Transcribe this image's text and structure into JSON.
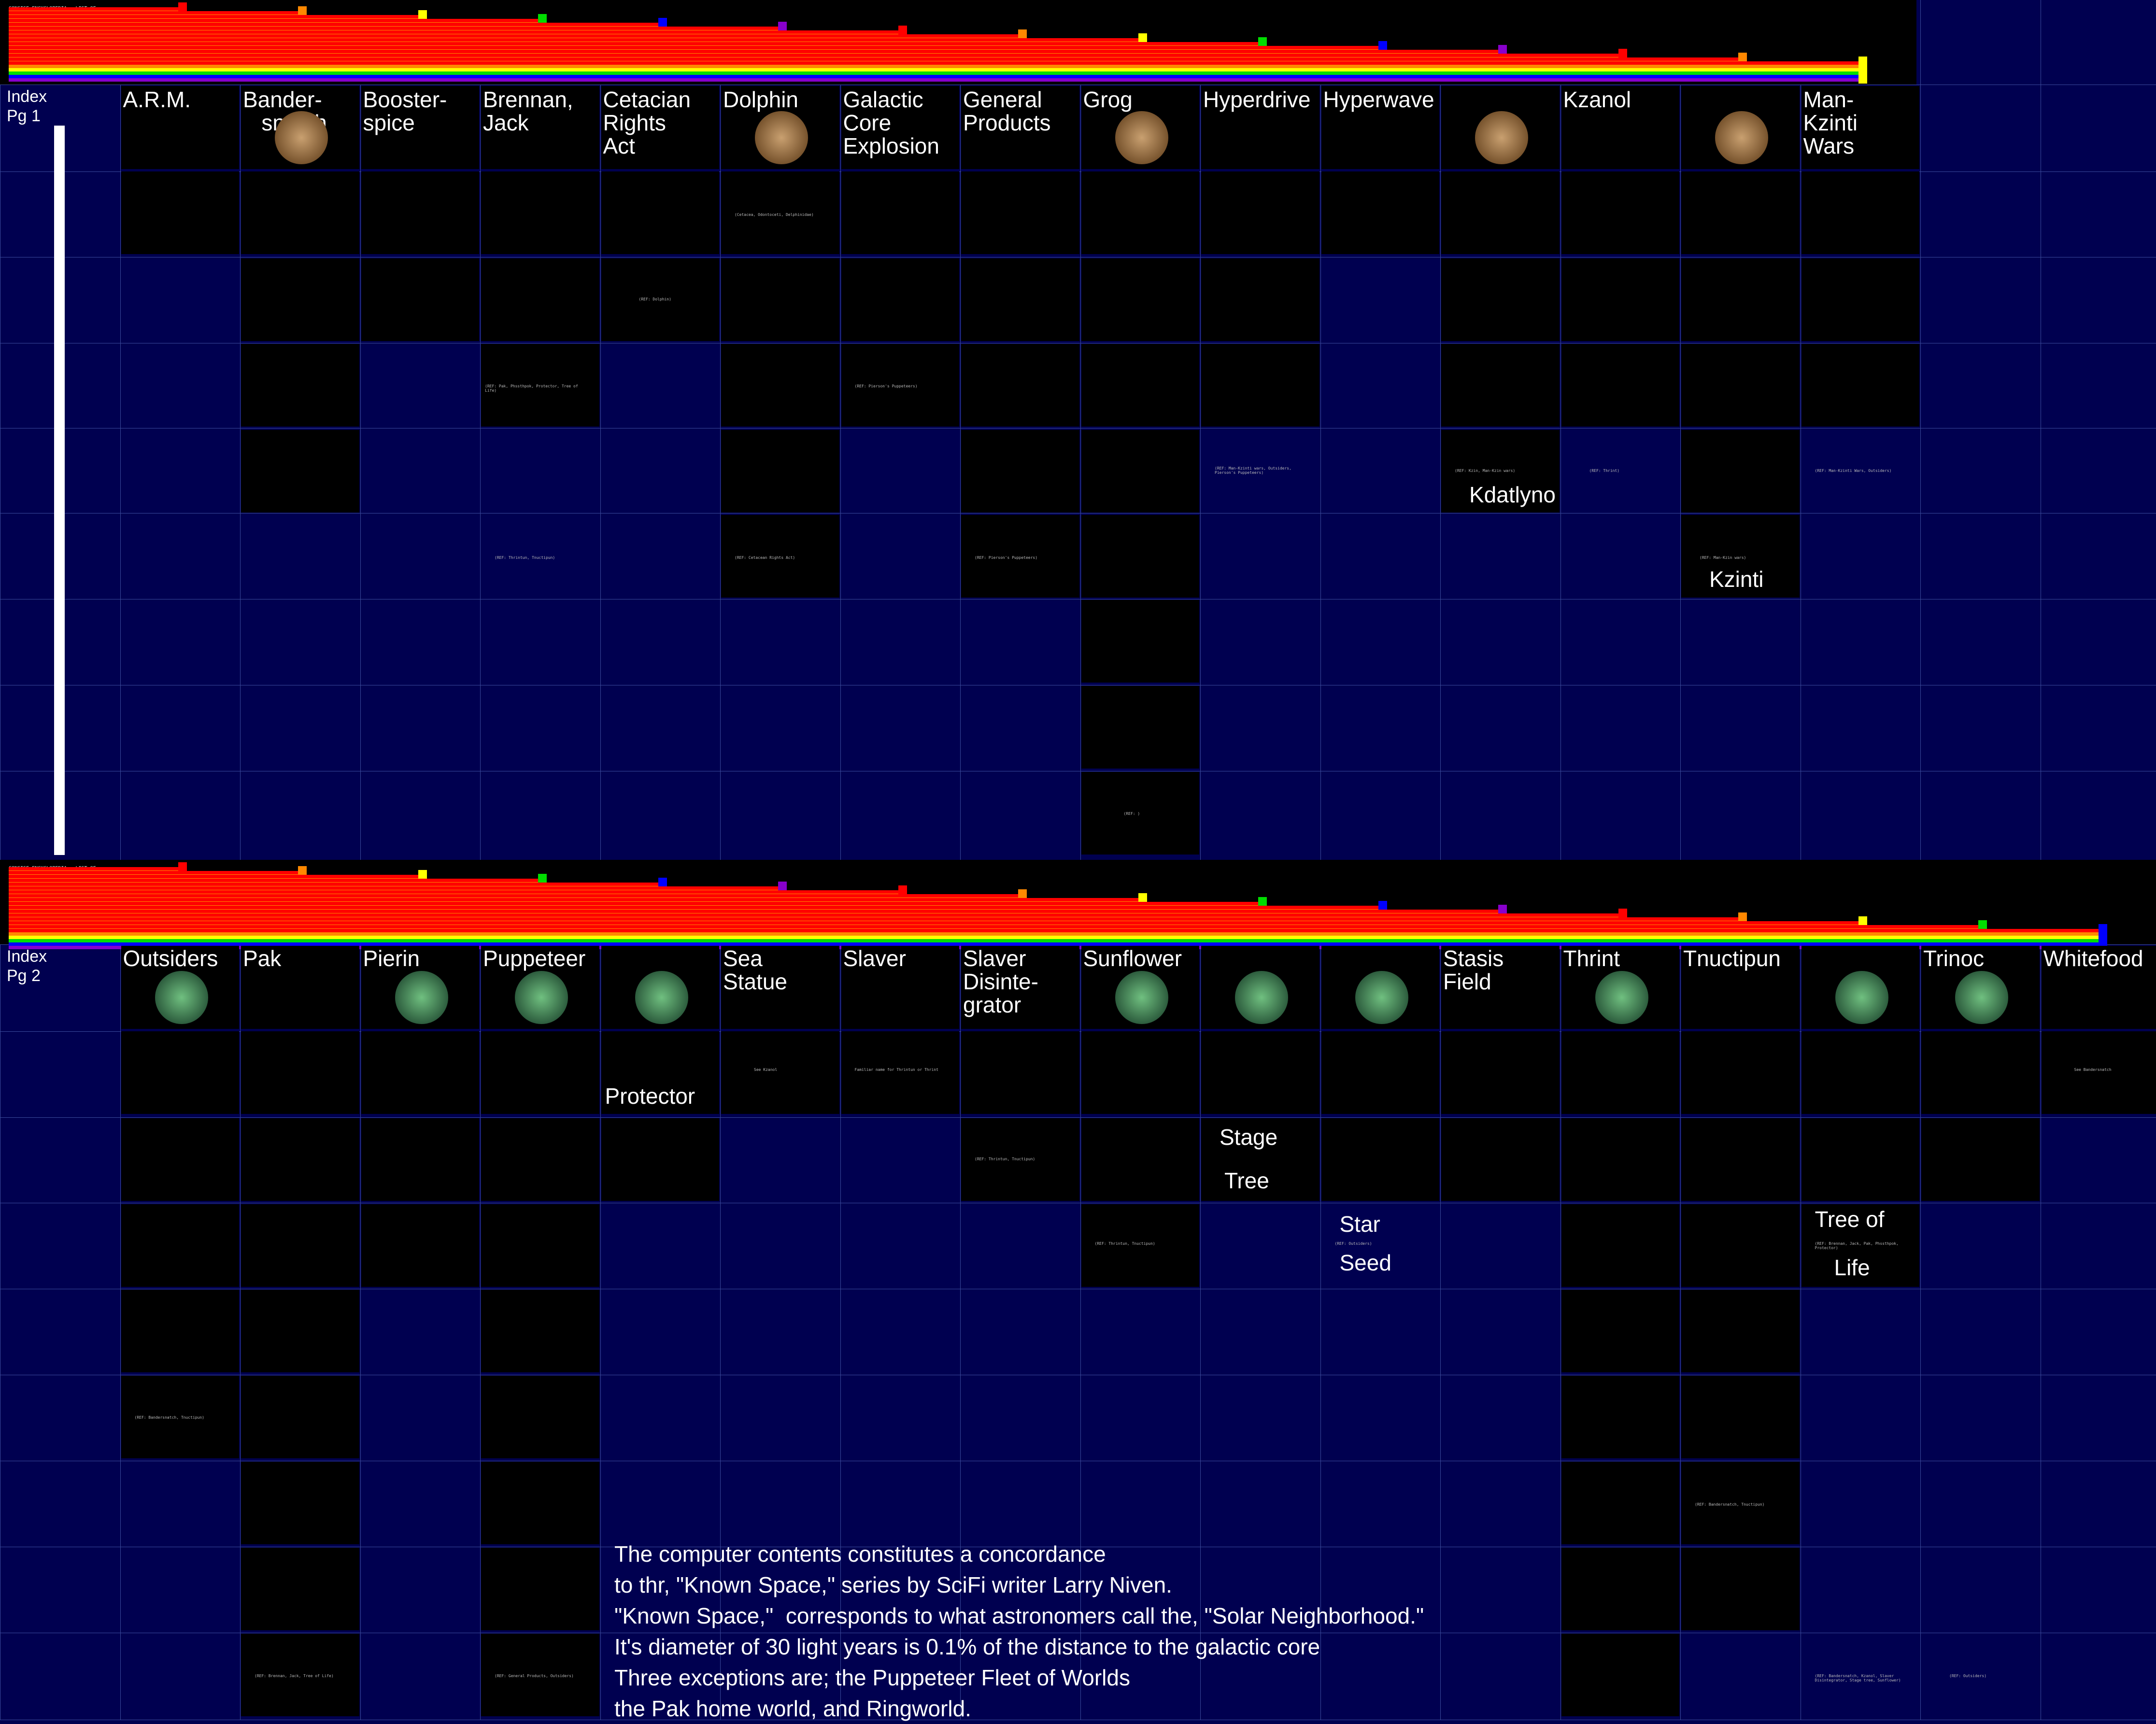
{
  "band1_title": "CONCISE ENCYCLOPEDIA - LIST OF\nSUBJECTS\nARM (Amalgamation of Regional",
  "band2_title": "CONCISE ENCYCLOPEDIA - LIST OF\nSUBJECTS",
  "index1": "Index\nPg 1",
  "index2": "Index\nPg 2",
  "page1": [
    {
      "label": "A.R.M.",
      "icon": ""
    },
    {
      "label": "Bander-\n   snatch",
      "icon": "bandersnatch-icon"
    },
    {
      "label": "Booster-\nspice",
      "icon": ""
    },
    {
      "label": "Brennan,\nJack",
      "icon": ""
    },
    {
      "label": "Cetacian\nRights\nAct",
      "icon": ""
    },
    {
      "label": "Dolphin",
      "icon": "dolphin-icon"
    },
    {
      "label": "Galactic\nCore\nExplosion",
      "icon": ""
    },
    {
      "label": "General\nProducts",
      "icon": ""
    },
    {
      "label": "Grog",
      "icon": "grog-icon"
    },
    {
      "label": "Hyperdrive",
      "icon": ""
    },
    {
      "label": "Hyperwave",
      "icon": ""
    },
    {
      "label": "",
      "icon": "kdatlyno-icon"
    },
    {
      "label": "Kzanol",
      "icon": ""
    },
    {
      "label": "",
      "icon": "kzinti-icon"
    },
    {
      "label": "Man-\nKzinti\nWars",
      "icon": ""
    }
  ],
  "page2": [
    {
      "label": "Outsiders",
      "icon": "outsider-icon"
    },
    {
      "label": "Pak",
      "icon": ""
    },
    {
      "label": "Pierin",
      "icon": "pierin-icon"
    },
    {
      "label": "Puppeteer",
      "icon": "puppeteer-icon"
    },
    {
      "label": "",
      "icon": "protector-icon"
    },
    {
      "label": "Sea\nStatue",
      "icon": ""
    },
    {
      "label": "Slaver",
      "icon": ""
    },
    {
      "label": "Slaver\nDisinte-\ngrator",
      "icon": ""
    },
    {
      "label": "Sunflower",
      "icon": "sunflower-icon"
    },
    {
      "label": "",
      "icon": "stage-tree-icon"
    },
    {
      "label": "",
      "icon": "star-seed-icon"
    },
    {
      "label": "Stasis\nField",
      "icon": ""
    },
    {
      "label": "Thrint",
      "icon": "thrint-icon"
    },
    {
      "label": "Tnuctipun",
      "icon": ""
    },
    {
      "label": "",
      "icon": "tree-of-life-icon"
    },
    {
      "label": "Trinoc",
      "icon": "trinoc-icon"
    },
    {
      "label": "Whitefood",
      "icon": ""
    }
  ],
  "inline_labels": [
    {
      "text": "Kdatlyno"
    },
    {
      "text": "Kzinti"
    },
    {
      "text": "Protector"
    },
    {
      "text": "Stage"
    },
    {
      "text": "Tree"
    },
    {
      "text": "Star"
    },
    {
      "text": "Seed"
    },
    {
      "text": "Tree of"
    },
    {
      "text": "Life"
    }
  ],
  "caption": [
    "The computer contents constitutes a concordance",
    "to thr, \"Known Space,\" series by SciFi writer Larry Niven.",
    "\"Known Space,\"  corresponds to what astronomers call the, \"Solar Neighborhood.\"",
    "It's diameter of 30 light years is 0.1% of the distance to the galactic core",
    "Three exceptions are; the Puppeteer Fleet of Worlds",
    "the Pak home world, and Ringworld."
  ],
  "snippets": {
    "ref_thrintun": "(REF: Thrintun, Tnuctipun)",
    "ref_cetacean": "(REF: Cetacean Rights Act)",
    "ref_puppeteers": "(REF: Pierson's Puppeteers)",
    "ref_dolphin": "(REF: Dolphin)",
    "ref_pak": "(REF: Pak, Phssthpok, Protector, Tree of Life)",
    "ref_outsiders": "(REF: Man-Kzinti Wars, Outsiders)",
    "ref_kdatlyno": "(REF: Kzin, Man-Kzin wars)",
    "ref_thrint": "(REF: Thrint)",
    "ref_mankzin": "(REF: Man-Kzin wars)",
    "ref_puppeteer_outsiders": "(REF: Man-Kzinti wars, Outsiders, Pierson's Puppeteers)",
    "see_kzanol": "See Kzanol",
    "see_bandersnatch": "See Bandersnatch",
    "ref_outsider_short": "(REF: Outsiders)",
    "ref_brennan": "(REF: Brennan, Jack, Tree of Life)",
    "ref_general": "(REF: General Products, Outsiders)",
    "ref_bander_tnuct": "(REF: Bandersnatch, Tnuctipun)",
    "ref_stage_tree": "(REF: Outsiders)",
    "ref_pak2": "(REF: Brennan, Jack, Pak, Phssthpok, Protector)",
    "ref_bander2": "(REF: Bandersnatch, Kzanol, Slaver Disintegrator, Stage tree, Sunflower)",
    "ref_grog": "(REF: )",
    "dolphin_note": "(Cetacea, Odontoceti, Delphinidae)",
    "familiar": "Familiar name for Thrintun or Thrint",
    "see_thrint": "(REF: Thrint)"
  },
  "colors": {
    "background": "#000050",
    "cell": "#000000",
    "rainbow": [
      "#ff0000",
      "#ff8800",
      "#ffff00",
      "#00dd00",
      "#0000ff",
      "#8800cc"
    ]
  }
}
